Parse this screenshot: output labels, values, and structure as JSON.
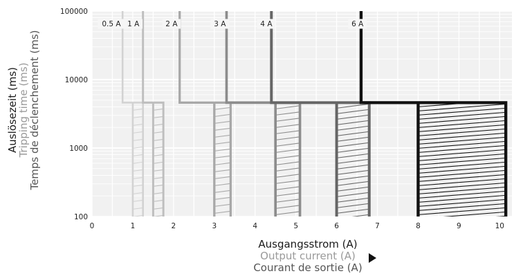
{
  "chart_data": {
    "type": "line",
    "title": "",
    "xlabel": [
      "Ausgangsstrom (A)",
      "Output current (A)",
      "Courant de sortie (A)"
    ],
    "ylabel": [
      "Auslösezeit (ms)",
      "Tripping time (ms)",
      "Temps de déclenchement (ms)"
    ],
    "x_ticks": [
      "0",
      "1",
      "2",
      "3",
      "4",
      "5",
      "6",
      "7",
      "8",
      "9",
      "10"
    ],
    "y_ticks": [
      "100",
      "1000",
      "10000",
      "100000"
    ],
    "xlim": [
      0,
      10.3
    ],
    "ylim": [
      100,
      100000
    ],
    "yscale": "log",
    "grid": true,
    "series": [
      {
        "name": "0.5 A",
        "color": "#d2d2d2",
        "vertical_x": 0.75,
        "hold_time_ms": 4600,
        "band": [
          1.0,
          1.25
        ],
        "hatch_spacing": 11
      },
      {
        "name": "1 A",
        "color": "#bebebe",
        "vertical_x": 1.25,
        "hold_time_ms": 4600,
        "band": [
          1.5,
          1.75
        ],
        "hatch_spacing": 11
      },
      {
        "name": "2 A",
        "color": "#a8a8a8",
        "vertical_x": 2.15,
        "hold_time_ms": 4600,
        "band": [
          3.0,
          3.4
        ],
        "hatch_spacing": 10
      },
      {
        "name": "3 A",
        "color": "#8c8c8c",
        "vertical_x": 3.3,
        "hold_time_ms": 4600,
        "band": [
          4.5,
          5.1
        ],
        "hatch_spacing": 9
      },
      {
        "name": "4 A",
        "color": "#666666",
        "vertical_x": 4.4,
        "hold_time_ms": 4600,
        "band": [
          6.0,
          6.8
        ],
        "hatch_spacing": 8
      },
      {
        "name": "6 A",
        "color": "#111111",
        "vertical_x": 6.6,
        "hold_time_ms": 4600,
        "band": [
          8.0,
          10.15
        ],
        "hatch_spacing": 6
      }
    ]
  }
}
